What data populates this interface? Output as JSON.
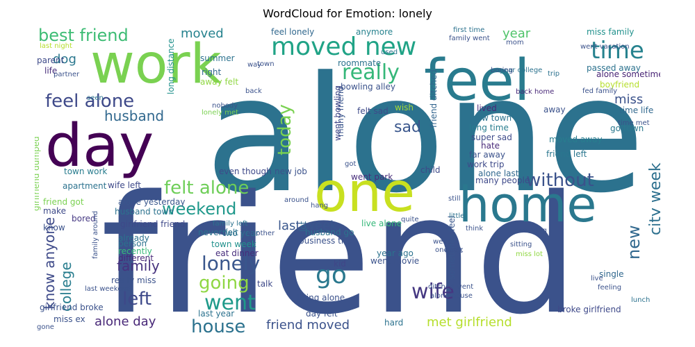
{
  "chart_data": {
    "type": "wordcloud",
    "title": "WordCloud for Emotion: lonely",
    "colormap": "viridis",
    "background": "#ffffff",
    "words": [
      {
        "text": "alone",
        "weight": 1.0,
        "color": "#2c728e",
        "rotate": false
      },
      {
        "text": "friend",
        "weight": 0.98,
        "color": "#3b528b",
        "rotate": false
      },
      {
        "text": "work",
        "weight": 0.72,
        "color": "#7ad151",
        "rotate": false
      },
      {
        "text": "feel",
        "weight": 0.7,
        "color": "#297b8e",
        "rotate": false
      },
      {
        "text": "day",
        "weight": 0.6,
        "color": "#440154",
        "rotate": false
      },
      {
        "text": "one",
        "weight": 0.55,
        "color": "#c8e020",
        "rotate": false
      },
      {
        "text": "home",
        "weight": 0.52,
        "color": "#2a788e",
        "rotate": false
      },
      {
        "text": "moved new",
        "weight": 0.32,
        "color": "#20a386",
        "rotate": false
      },
      {
        "text": "time",
        "weight": 0.28,
        "color": "#26828e",
        "rotate": false
      },
      {
        "text": "best friend",
        "weight": 0.25,
        "color": "#3dbc74",
        "rotate": false
      },
      {
        "text": "really",
        "weight": 0.28,
        "color": "#35b779",
        "rotate": false
      },
      {
        "text": "feel alone",
        "weight": 0.24,
        "color": "#3e4989",
        "rotate": false
      },
      {
        "text": "husband",
        "weight": 0.22,
        "color": "#31688e",
        "rotate": false
      },
      {
        "text": "felt alone",
        "weight": 0.29,
        "color": "#6ece58",
        "rotate": false
      },
      {
        "text": "weekend",
        "weight": 0.28,
        "color": "#1f988b",
        "rotate": false
      },
      {
        "text": "without",
        "weight": 0.24,
        "color": "#3b528b",
        "rotate": false
      },
      {
        "text": "know anyone",
        "weight": 0.22,
        "color": "#3e4a89",
        "rotate": true
      },
      {
        "text": "college",
        "weight": 0.22,
        "color": "#287d8e",
        "rotate": true
      },
      {
        "text": "today",
        "weight": 0.24,
        "color": "#7ad151",
        "rotate": true
      },
      {
        "text": "city week",
        "weight": 0.23,
        "color": "#2d708e",
        "rotate": true
      },
      {
        "text": "sad",
        "weight": 0.22,
        "color": "#39568c",
        "rotate": false
      },
      {
        "text": "lonely",
        "weight": 0.26,
        "color": "#39568c",
        "rotate": false
      },
      {
        "text": "go",
        "weight": 0.3,
        "color": "#2a788e",
        "rotate": false
      },
      {
        "text": "wife",
        "weight": 0.3,
        "color": "#453781",
        "rotate": false
      },
      {
        "text": "went",
        "weight": 0.28,
        "color": "#1f9a8a",
        "rotate": false
      },
      {
        "text": "left",
        "weight": 0.25,
        "color": "#3e4989",
        "rotate": false
      },
      {
        "text": "house",
        "weight": 0.25,
        "color": "#2c728e",
        "rotate": false
      },
      {
        "text": "new",
        "weight": 0.25,
        "color": "#31688e",
        "rotate": true
      },
      {
        "text": "going",
        "weight": 0.22,
        "color": "#8fd744",
        "rotate": false
      },
      {
        "text": "family",
        "weight": 0.18,
        "color": "#46327e",
        "rotate": false
      },
      {
        "text": "alone day",
        "weight": 0.18,
        "color": "#482878",
        "rotate": false
      },
      {
        "text": "friend moved",
        "weight": 0.18,
        "color": "#3b528b",
        "rotate": false
      },
      {
        "text": "met girlfriend",
        "weight": 0.18,
        "color": "#b5de2b",
        "rotate": false
      },
      {
        "text": "last week",
        "weight": 0.16,
        "color": "#39568c",
        "rotate": false
      },
      {
        "text": "year",
        "weight": 0.19,
        "color": "#50c46a",
        "rotate": false
      },
      {
        "text": "moved",
        "weight": 0.17,
        "color": "#26828e",
        "rotate": false
      },
      {
        "text": "miss",
        "weight": 0.16,
        "color": "#3b528b",
        "rotate": false
      },
      {
        "text": "dog",
        "weight": 0.16,
        "color": "#2a778e",
        "rotate": false
      },
      {
        "text": "anymore",
        "weight": 0.12,
        "color": "#26828e",
        "rotate": false
      },
      {
        "text": "feel lonely",
        "weight": 0.12,
        "color": "#31688e",
        "rotate": false
      },
      {
        "text": "miss family",
        "weight": 0.12,
        "color": "#21918c",
        "rotate": false
      },
      {
        "text": "passed away",
        "weight": 0.12,
        "color": "#2c728e",
        "rotate": false
      },
      {
        "text": "boyfriend",
        "weight": 0.12,
        "color": "#b5de2b",
        "rotate": false
      },
      {
        "text": "roommate",
        "weight": 0.12,
        "color": "#2c728e",
        "rotate": false
      },
      {
        "text": "life",
        "weight": 0.12,
        "color": "#472d7b",
        "rotate": false
      },
      {
        "text": "right",
        "weight": 0.12,
        "color": "#31688e",
        "rotate": false
      },
      {
        "text": "parent",
        "weight": 0.12,
        "color": "#3e4a89",
        "rotate": false
      },
      {
        "text": "wish",
        "weight": 0.12,
        "color": "#a2da37",
        "rotate": false
      },
      {
        "text": "away",
        "weight": 0.12,
        "color": "#3b528b",
        "rotate": false
      },
      {
        "text": "moved away",
        "weight": 0.12,
        "color": "#287d8e",
        "rotate": false
      },
      {
        "text": "friend left",
        "weight": 0.12,
        "color": "#2a768e",
        "rotate": false
      },
      {
        "text": "apartment",
        "weight": 0.11,
        "color": "#2c728e",
        "rotate": false
      },
      {
        "text": "town work",
        "weight": 0.11,
        "color": "#287c8e",
        "rotate": false
      },
      {
        "text": "girlfriend friend",
        "weight": 0.11,
        "color": "#3e4989",
        "rotate": false
      },
      {
        "text": "bored",
        "weight": 0.11,
        "color": "#453882",
        "rotate": false
      },
      {
        "text": "recently",
        "weight": 0.11,
        "color": "#37b878",
        "rotate": false
      },
      {
        "text": "many friend",
        "weight": 0.11,
        "color": "#39568c",
        "rotate": true
      },
      {
        "text": "friend ditched",
        "weight": 0.11,
        "color": "#32658e",
        "rotate": true
      },
      {
        "text": "lot",
        "weight": 0.11,
        "color": "#31688e",
        "rotate": true
      },
      {
        "text": "child",
        "weight": 0.11,
        "color": "#3e4989",
        "rotate": false
      },
      {
        "text": "kid",
        "weight": 0.11,
        "color": "#404688",
        "rotate": false
      },
      {
        "text": "talk",
        "weight": 0.11,
        "color": "#3e4989",
        "rotate": false
      },
      {
        "text": "single",
        "weight": 0.11,
        "color": "#31688e",
        "rotate": false
      },
      {
        "text": "last year",
        "weight": 0.11,
        "color": "#2c728e",
        "rotate": false
      },
      {
        "text": "hard",
        "weight": 0.11,
        "color": "#2c728e",
        "rotate": false
      },
      {
        "text": "live alone",
        "weight": 0.1,
        "color": "#35b779",
        "rotate": false
      },
      {
        "text": "broke girlfriend",
        "weight": 0.1,
        "color": "#3e4989",
        "rotate": false
      },
      {
        "text": "sometimes feel",
        "weight": 0.1,
        "color": "#39568c",
        "rotate": true
      },
      {
        "text": "went bowling",
        "weight": 0.09,
        "color": "#404688",
        "rotate": true
      },
      {
        "text": "felt sad",
        "weight": 0.08,
        "color": "#3e4a89",
        "rotate": false
      },
      {
        "text": "bowling alley",
        "weight": 0.08,
        "color": "#3b528b",
        "rotate": false
      },
      {
        "text": "long distance",
        "weight": 0.08,
        "color": "#21918c",
        "rotate": true
      },
      {
        "text": "summer",
        "weight": 0.07,
        "color": "#2c728e",
        "rotate": false
      },
      {
        "text": "away felt",
        "weight": 0.07,
        "color": "#90d743",
        "rotate": false
      },
      {
        "text": "alone sometime",
        "weight": 0.07,
        "color": "#482475",
        "rotate": false
      },
      {
        "text": "time life",
        "weight": 0.07,
        "color": "#31688e",
        "rotate": false
      },
      {
        "text": "go town",
        "weight": 0.07,
        "color": "#2a788e",
        "rotate": false
      },
      {
        "text": "lived",
        "weight": 0.07,
        "color": "#482878",
        "rotate": false
      },
      {
        "text": "new town",
        "weight": 0.07,
        "color": "#2c728e",
        "rotate": false
      },
      {
        "text": "long time",
        "weight": 0.07,
        "color": "#287d8e",
        "rotate": false
      },
      {
        "text": "super sad",
        "weight": 0.07,
        "color": "#3e4a89",
        "rotate": false
      },
      {
        "text": "far away",
        "weight": 0.07,
        "color": "#3b528b",
        "rotate": false
      },
      {
        "text": "work trip",
        "weight": 0.07,
        "color": "#3e4a89",
        "rotate": false
      },
      {
        "text": "hate",
        "weight": 0.07,
        "color": "#482878",
        "rotate": false
      },
      {
        "text": "went park",
        "weight": 0.07,
        "color": "#472d7b",
        "rotate": false
      },
      {
        "text": "new job",
        "weight": 0.07,
        "color": "#3b528b",
        "rotate": false
      },
      {
        "text": "even though",
        "weight": 0.07,
        "color": "#3e4989",
        "rotate": false
      },
      {
        "text": "many people",
        "weight": 0.07,
        "color": "#3e4989",
        "rotate": false
      },
      {
        "text": "alone last",
        "weight": 0.07,
        "color": "#31688e",
        "rotate": false
      },
      {
        "text": "girlfriend dumped",
        "weight": 0.06,
        "color": "#7ad151",
        "rotate": true
      },
      {
        "text": "wife left",
        "weight": 0.07,
        "color": "#3e4989",
        "rotate": false
      },
      {
        "text": "husband town",
        "weight": 0.07,
        "color": "#2c728e",
        "rotate": false
      },
      {
        "text": "alone yesterday",
        "weight": 0.07,
        "color": "#39568c",
        "rotate": false
      },
      {
        "text": "friend got",
        "weight": 0.07,
        "color": "#7ad151",
        "rotate": false
      },
      {
        "text": "make",
        "weight": 0.07,
        "color": "#3e4a89",
        "rotate": false
      },
      {
        "text": "know",
        "weight": 0.07,
        "color": "#3b528b",
        "rotate": false
      },
      {
        "text": "already",
        "weight": 0.07,
        "color": "#2c728e",
        "rotate": false
      },
      {
        "text": "person",
        "weight": 0.07,
        "color": "#2c728e",
        "rotate": false
      },
      {
        "text": "different",
        "weight": 0.07,
        "color": "#482878",
        "rotate": false
      },
      {
        "text": "really miss",
        "weight": 0.07,
        "color": "#3b528b",
        "rotate": false
      },
      {
        "text": "eat dinner",
        "weight": 0.07,
        "color": "#472d7b",
        "rotate": false
      },
      {
        "text": "two year",
        "weight": 0.07,
        "color": "#2c728e",
        "rotate": false
      },
      {
        "text": "town week",
        "weight": 0.07,
        "color": "#21918c",
        "rotate": false
      },
      {
        "text": "never felt",
        "weight": 0.07,
        "color": "#2c728e",
        "rotate": false
      },
      {
        "text": "husband go",
        "weight": 0.07,
        "color": "#2c728e",
        "rotate": false
      },
      {
        "text": "business trip",
        "weight": 0.07,
        "color": "#3b528b",
        "rotate": false
      },
      {
        "text": "year ago",
        "weight": 0.07,
        "color": "#2c728e",
        "rotate": false
      },
      {
        "text": "went movie",
        "weight": 0.07,
        "color": "#3b528b",
        "rotate": false
      },
      {
        "text": "living alone",
        "weight": 0.07,
        "color": "#3b528b",
        "rotate": false
      },
      {
        "text": "girlfriend broke",
        "weight": 0.07,
        "color": "#3b528b",
        "rotate": false
      },
      {
        "text": "miss ex",
        "weight": 0.07,
        "color": "#3b528b",
        "rotate": false
      },
      {
        "text": "day felt",
        "weight": 0.07,
        "color": "#3b528b",
        "rotate": false
      },
      {
        "text": "first time",
        "weight": 0.06,
        "color": "#2c728e",
        "rotate": false
      },
      {
        "text": "family went",
        "weight": 0.06,
        "color": "#3b528b",
        "rotate": false
      },
      {
        "text": "went vacation",
        "weight": 0.06,
        "color": "#3b528b",
        "rotate": false
      },
      {
        "text": "mom",
        "weight": 0.06,
        "color": "#3b528b",
        "rotate": false
      },
      {
        "text": "trip",
        "weight": 0.06,
        "color": "#2c728e",
        "rotate": false
      },
      {
        "text": "year college",
        "weight": 0.06,
        "color": "#2c728e",
        "rotate": false
      },
      {
        "text": "boring",
        "weight": 0.06,
        "color": "#3b528b",
        "rotate": false
      },
      {
        "text": "back home",
        "weight": 0.06,
        "color": "#482878",
        "rotate": false
      },
      {
        "text": "fed family",
        "weight": 0.06,
        "color": "#3b528b",
        "rotate": false
      },
      {
        "text": "time met",
        "weight": 0.06,
        "color": "#3b528b",
        "rotate": false
      },
      {
        "text": "last night",
        "weight": 0.06,
        "color": "#b5de2b",
        "rotate": false
      },
      {
        "text": "partner",
        "weight": 0.06,
        "color": "#3b528b",
        "rotate": false
      },
      {
        "text": "way",
        "weight": 0.06,
        "color": "#3b528b",
        "rotate": false
      },
      {
        "text": "town",
        "weight": 0.06,
        "color": "#3b528b",
        "rotate": false
      },
      {
        "text": "back",
        "weight": 0.06,
        "color": "#3b528b",
        "rotate": false
      },
      {
        "text": "seen",
        "weight": 0.06,
        "color": "#2c728e",
        "rotate": false
      },
      {
        "text": "nobody",
        "weight": 0.06,
        "color": "#3b528b",
        "rotate": false
      },
      {
        "text": "lonely met",
        "weight": 0.06,
        "color": "#7ad151",
        "rotate": false
      },
      {
        "text": "used",
        "weight": 0.06,
        "color": "#2c728e",
        "rotate": false
      },
      {
        "text": "got",
        "weight": 0.05,
        "color": "#3b528b",
        "rotate": false
      },
      {
        "text": "around",
        "weight": 0.06,
        "color": "#3b528b",
        "rotate": false
      },
      {
        "text": "another",
        "weight": 0.06,
        "color": "#3b528b",
        "rotate": false
      },
      {
        "text": "hang",
        "weight": 0.06,
        "color": "#3b528b",
        "rotate": false
      },
      {
        "text": "family left",
        "weight": 0.06,
        "color": "#2c728e",
        "rotate": false
      },
      {
        "text": "quite",
        "weight": 0.06,
        "color": "#3b528b",
        "rotate": false
      },
      {
        "text": "still",
        "weight": 0.06,
        "color": "#3b528b",
        "rotate": false
      },
      {
        "text": "little",
        "weight": 0.06,
        "color": "#2c728e",
        "rotate": false
      },
      {
        "text": "weird",
        "weight": 0.06,
        "color": "#3b528b",
        "rotate": false
      },
      {
        "text": "one talk",
        "weight": 0.06,
        "color": "#3b528b",
        "rotate": false
      },
      {
        "text": "quiet",
        "weight": 0.06,
        "color": "#3b528b",
        "rotate": false
      },
      {
        "text": "ditched went",
        "weight": 0.06,
        "color": "#3b528b",
        "rotate": false
      },
      {
        "text": "alone house",
        "weight": 0.06,
        "color": "#3b528b",
        "rotate": false
      },
      {
        "text": "think",
        "weight": 0.06,
        "color": "#3b528b",
        "rotate": false
      },
      {
        "text": "one hang",
        "weight": 0.06,
        "color": "#3b528b",
        "rotate": false
      },
      {
        "text": "sitting",
        "weight": 0.06,
        "color": "#3b528b",
        "rotate": false
      },
      {
        "text": "miss lot",
        "weight": 0.06,
        "color": "#90d743",
        "rotate": false
      },
      {
        "text": "live",
        "weight": 0.06,
        "color": "#3b528b",
        "rotate": false
      },
      {
        "text": "feeling",
        "weight": 0.06,
        "color": "#3b528b",
        "rotate": false
      },
      {
        "text": "lunch",
        "weight": 0.05,
        "color": "#2c728e",
        "rotate": false
      },
      {
        "text": "gone",
        "weight": 0.05,
        "color": "#3b528b",
        "rotate": false
      },
      {
        "text": "family around",
        "weight": 0.05,
        "color": "#3b528b",
        "rotate": true
      },
      {
        "text": "last weekend",
        "weight": 0.06,
        "color": "#3b528b",
        "rotate": false
      }
    ]
  }
}
